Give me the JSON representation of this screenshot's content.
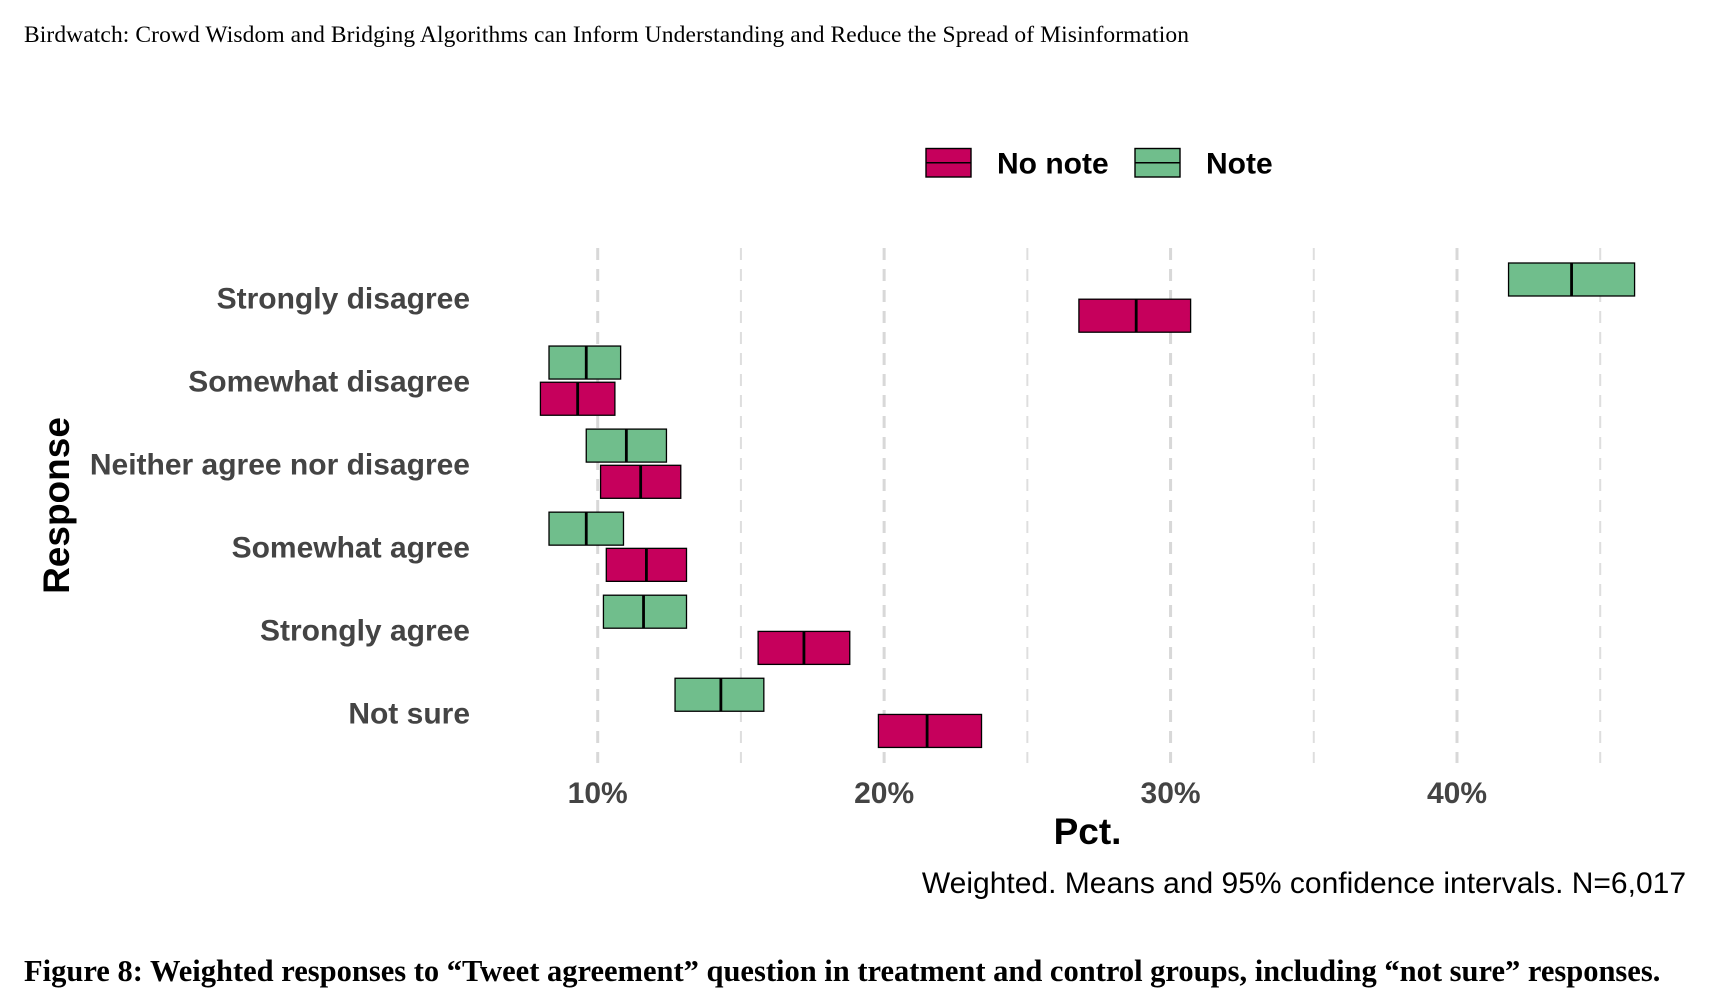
{
  "running_header": "Birdwatch: Crowd Wisdom and Bridging Algorithms can Inform Understanding and Reduce the Spread of Misinformation",
  "caption": "Figure 8: Weighted responses to “Tweet agreement” question in treatment and control groups, including “not sure” responses.",
  "chart_data": {
    "type": "bar",
    "orientation": "horizontal",
    "xlabel": "Pct.",
    "ylabel": "Response",
    "note": "Weighted. Means and 95% confidence intervals. N=6,017",
    "categories": [
      "Strongly disagree",
      "Somewhat disagree",
      "Neither agree nor disagree",
      "Somewhat agree",
      "Strongly agree",
      "Not sure"
    ],
    "x_tick_values": [
      10,
      20,
      30,
      40
    ],
    "x_ticks": [
      "10%",
      "20%",
      "30%",
      "40%"
    ],
    "x_minor_grid": [
      15,
      25,
      35,
      45
    ],
    "xlim": [
      6.1,
      48.1
    ],
    "grid": true,
    "legend": {
      "position": "top"
    },
    "series": [
      {
        "name": "No note",
        "color": "#C6005C",
        "values": [
          28.8,
          9.3,
          11.5,
          11.7,
          17.2,
          21.5
        ],
        "ci_lower": [
          26.8,
          8.0,
          10.1,
          10.3,
          15.6,
          19.8
        ],
        "ci_upper": [
          30.7,
          10.6,
          12.9,
          13.1,
          18.8,
          23.4
        ]
      },
      {
        "name": "Note",
        "color": "#70BE8C",
        "values": [
          44.0,
          9.6,
          11.0,
          9.6,
          11.6,
          14.3
        ],
        "ci_lower": [
          41.8,
          8.3,
          9.6,
          8.3,
          10.2,
          12.7
        ],
        "ci_upper": [
          46.2,
          10.8,
          12.4,
          10.9,
          13.1,
          15.8
        ]
      }
    ]
  }
}
